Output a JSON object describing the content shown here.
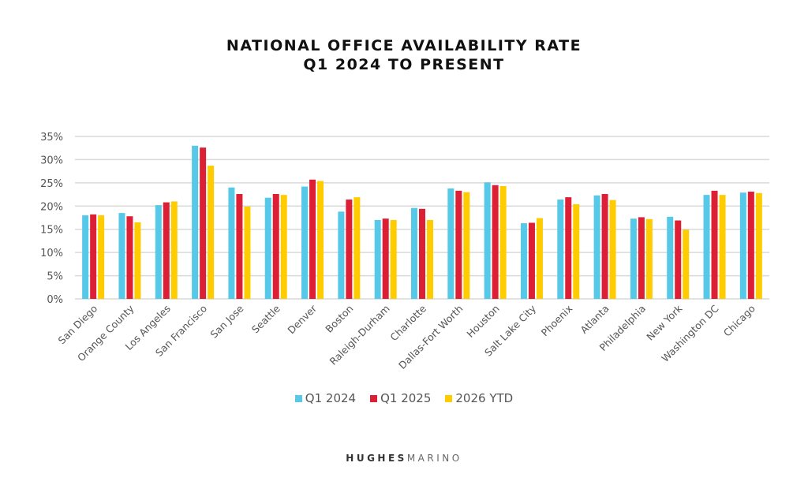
{
  "chart_data": {
    "type": "bar",
    "title": "NATIONAL OFFICE AVAILABILITY RATE",
    "subtitle": "Q1 2024 TO PRESENT",
    "xlabel": "",
    "ylabel": "",
    "ylim": [
      0,
      35
    ],
    "yticks": [
      "0%",
      "5%",
      "10%",
      "15%",
      "20%",
      "25%",
      "30%",
      "35%"
    ],
    "grid": true,
    "legend_position": "bottom",
    "categories": [
      "San Diego",
      "Orange County",
      "Los Angeles",
      "San Francisco",
      "San Jose",
      "Seattle",
      "Denver",
      "Boston",
      "Raleigh-Durham",
      "Charlotte",
      "Dallas-Fort Worth",
      "Houston",
      "Salt Lake City",
      "Phoenix",
      "Atlanta",
      "Philadelphia",
      "New York",
      "Washington DC",
      "Chicago"
    ],
    "series": [
      {
        "name": "Q1 2024",
        "color": "#56c8e8",
        "values": [
          18.0,
          18.5,
          20.2,
          33.0,
          24.0,
          21.8,
          24.2,
          18.8,
          17.0,
          19.6,
          23.8,
          25.1,
          16.3,
          21.4,
          22.3,
          17.3,
          17.7,
          22.4,
          22.9
        ]
      },
      {
        "name": "Q1 2025",
        "color": "#dc1f35",
        "values": [
          18.2,
          17.8,
          20.8,
          32.6,
          22.6,
          22.6,
          25.7,
          21.4,
          17.3,
          19.4,
          23.3,
          24.5,
          16.4,
          21.9,
          22.6,
          17.6,
          16.9,
          23.3,
          23.1
        ]
      },
      {
        "name": "2026 YTD",
        "color": "#ffcc00",
        "values": [
          18.0,
          16.5,
          21.0,
          28.7,
          19.9,
          22.4,
          25.4,
          21.9,
          17.0,
          17.0,
          23.0,
          24.3,
          17.4,
          20.4,
          21.3,
          17.2,
          14.9,
          22.4,
          22.8
        ]
      }
    ]
  },
  "logo": {
    "bold": "HUGHES",
    "light": "MARINO"
  }
}
